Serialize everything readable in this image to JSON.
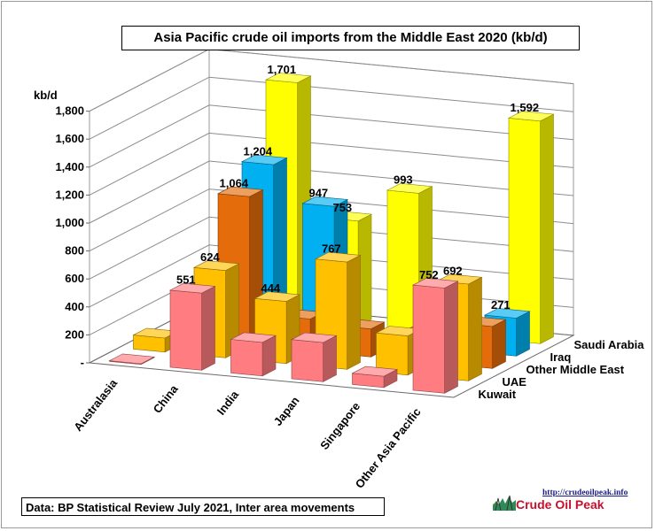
{
  "chart_data": {
    "type": "bar",
    "subtype": "3d-column",
    "title": "Asia Pacific crude oil imports from the Middle East 2020  (kb/d)",
    "ylabel": "kb/d",
    "ylim": [
      0,
      1800
    ],
    "yticks": [
      "-",
      "200",
      "400",
      "600",
      "800",
      "1,000",
      "1,200",
      "1,400",
      "1,600",
      "1,800"
    ],
    "grid": true,
    "categories": [
      "Australasia",
      "China",
      "India",
      "Japan",
      "Singapore",
      "Other Asia Pacific"
    ],
    "series": [
      {
        "name": "Saudi Arabia",
        "color": "#ffff00",
        "values": [
          0,
          1701,
          753,
          993,
          0,
          1592
        ],
        "labels": [
          "",
          "1,701",
          "753",
          "993",
          "",
          "1,592"
        ]
      },
      {
        "name": "Iraq",
        "color": "#00b0f0",
        "values": [
          0,
          1204,
          947,
          10,
          0,
          271
        ],
        "labels": [
          "",
          "1,204",
          "947",
          "",
          "",
          "271"
        ]
      },
      {
        "name": "Other Middle East",
        "color": "#e46c0a",
        "values": [
          0,
          1064,
          230,
          200,
          190,
          300
        ],
        "labels": [
          "",
          "1,064",
          "",
          "",
          "",
          ""
        ]
      },
      {
        "name": "UAE",
        "color": "#ffc000",
        "values": [
          100,
          624,
          444,
          767,
          280,
          692
        ],
        "labels": [
          "",
          "624",
          "444",
          "767",
          "",
          "692"
        ]
      },
      {
        "name": "Kuwait",
        "color": "#ff7c80",
        "values": [
          5,
          551,
          240,
          280,
          80,
          752
        ],
        "labels": [
          "",
          "551",
          "",
          "",
          "",
          "752"
        ]
      }
    ]
  },
  "footer": {
    "source": "Data: BP Statistical Review July 2021, Inter area movements",
    "logo_url": "http://crudeoilpeak.info",
    "logo_name": "Crude Oil Peak"
  }
}
